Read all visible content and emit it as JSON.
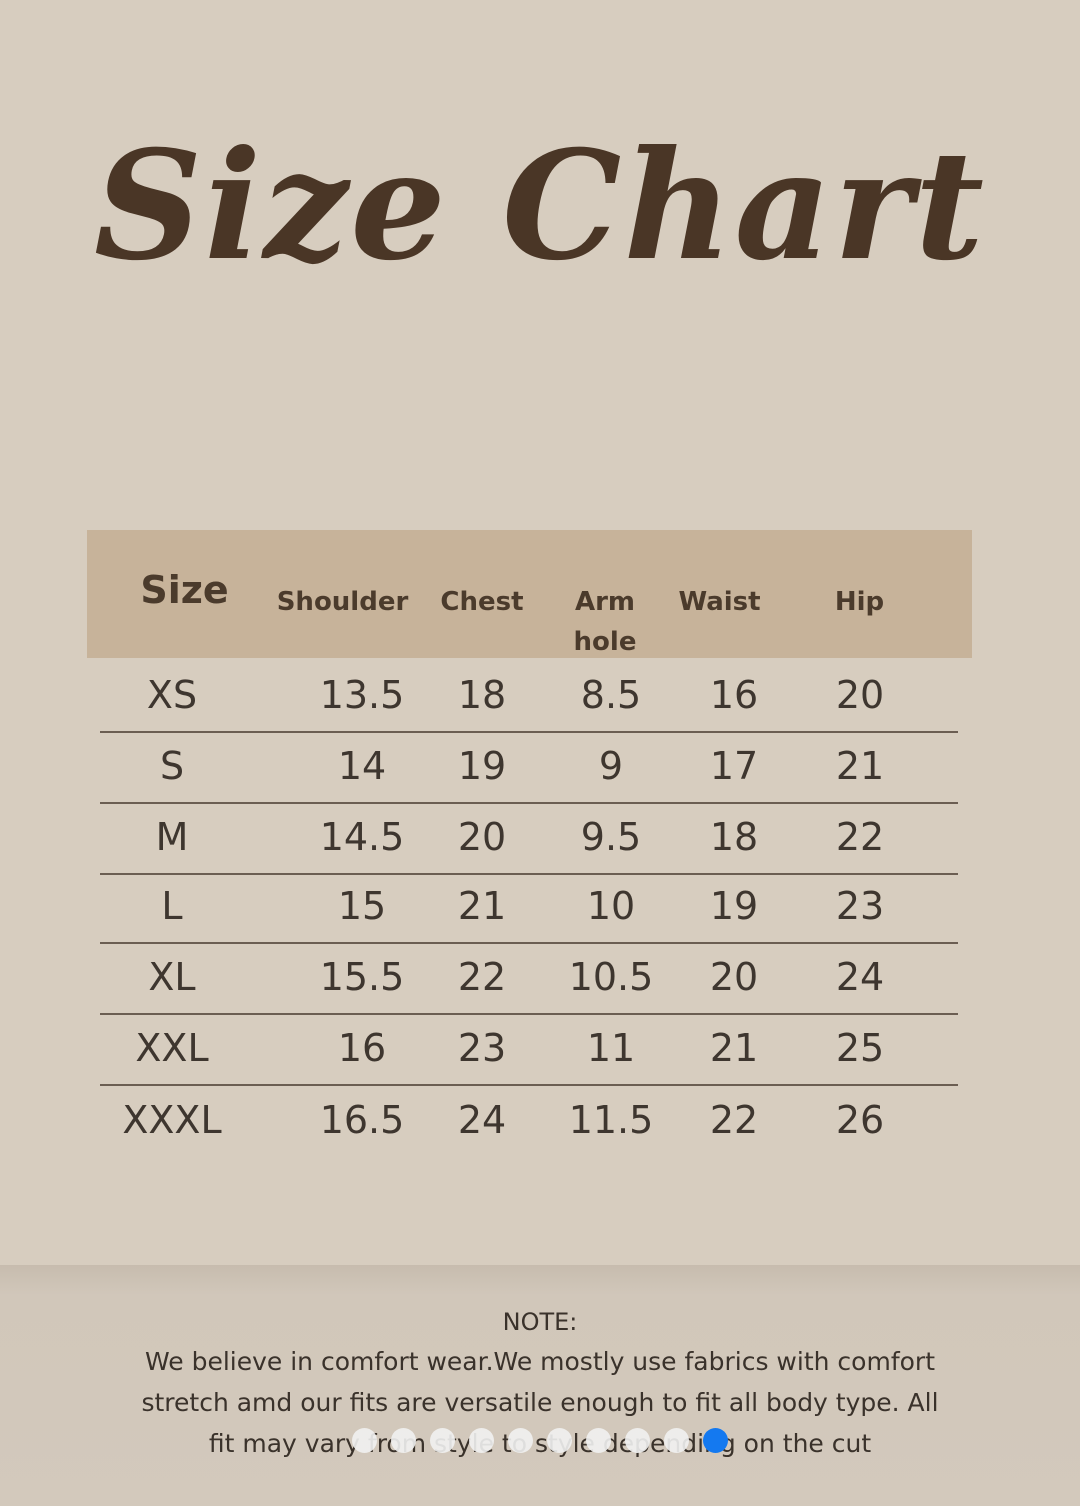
{
  "title": "Size Chart",
  "table": {
    "headers": [
      "Size",
      "Shoulder",
      "Chest",
      "Arm hole",
      "Waist",
      "Hip"
    ],
    "rows": [
      [
        "XS",
        "13.5",
        "18",
        "8.5",
        "16",
        "20"
      ],
      [
        "S",
        "14",
        "19",
        "9",
        "17",
        "21"
      ],
      [
        "M",
        "14.5",
        "20",
        "9.5",
        "18",
        "22"
      ],
      [
        "L",
        "15",
        "21",
        "10",
        "19",
        "23"
      ],
      [
        "XL",
        "15.5",
        "22",
        "10.5",
        "20",
        "24"
      ],
      [
        "XXL",
        "16",
        "23",
        "11",
        "21",
        "25"
      ],
      [
        "XXXL",
        "16.5",
        "24",
        "11.5",
        "22",
        "26"
      ]
    ]
  },
  "note": {
    "title": "NOTE:",
    "lines": [
      "We believe in comfort wear.We mostly use fabrics with comfort",
      "stretch amd our fits are versatile enough to fit all body type. All",
      "fit may vary from style to style depending on the cut"
    ]
  },
  "carousel": {
    "count": 10,
    "active_index": 9,
    "active_color": "#1479f0"
  }
}
